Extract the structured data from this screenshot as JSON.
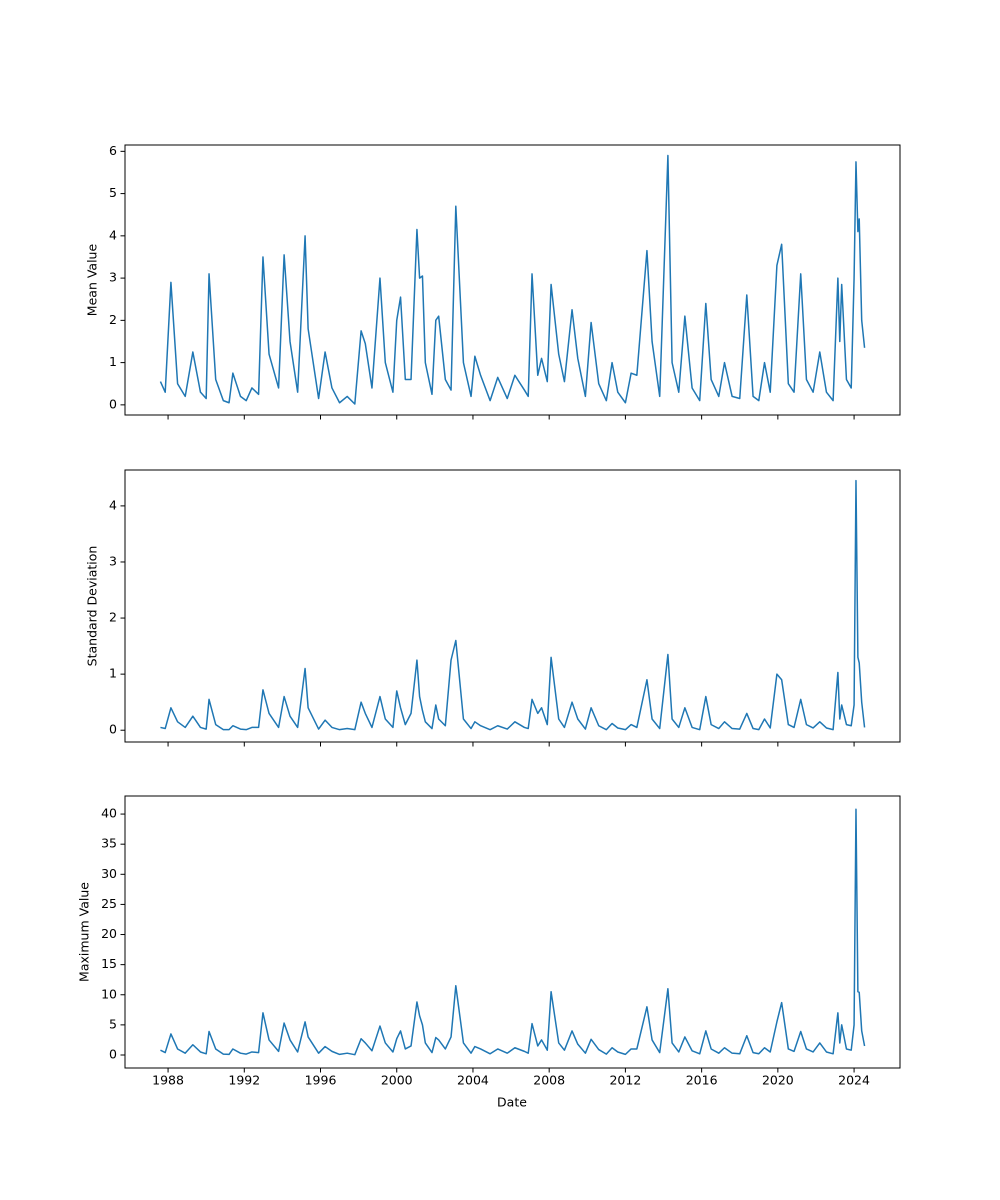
{
  "chart_data": {
    "type": "line",
    "xlabel": "Date",
    "color": "#1f77b4",
    "xlim": [
      1985.74,
      2026.41
    ],
    "xticks": [
      1988,
      1992,
      1996,
      2000,
      2004,
      2008,
      2012,
      2016,
      2020,
      2024
    ],
    "x": [
      1987.6,
      1987.85,
      1988.15,
      1988.5,
      1988.9,
      1989.3,
      1989.7,
      1990.0,
      1990.15,
      1990.5,
      1990.9,
      1991.2,
      1991.4,
      1991.8,
      1992.1,
      1992.4,
      1992.75,
      1992.98,
      1993.3,
      1993.8,
      1994.09,
      1994.4,
      1994.8,
      1995.19,
      1995.35,
      1995.9,
      1996.24,
      1996.6,
      1997.0,
      1997.4,
      1997.8,
      1998.13,
      1998.35,
      1998.7,
      1999.12,
      1999.4,
      1999.8,
      2000.0,
      2000.2,
      2000.45,
      2000.75,
      2001.06,
      2001.2,
      2001.35,
      2001.5,
      2001.85,
      2002.05,
      2002.2,
      2002.55,
      2002.85,
      2003.1,
      2003.5,
      2003.9,
      2004.1,
      2004.4,
      2004.9,
      2005.3,
      2005.8,
      2006.2,
      2006.7,
      2006.9,
      2007.1,
      2007.4,
      2007.6,
      2007.9,
      2008.1,
      2008.5,
      2008.8,
      2009.2,
      2009.5,
      2009.9,
      2010.2,
      2010.6,
      2011.0,
      2011.3,
      2011.6,
      2012.0,
      2012.3,
      2012.6,
      2013.13,
      2013.4,
      2013.8,
      2014.23,
      2014.45,
      2014.8,
      2015.12,
      2015.5,
      2015.9,
      2016.22,
      2016.5,
      2016.9,
      2017.2,
      2017.6,
      2018.0,
      2018.37,
      2018.7,
      2019.0,
      2019.3,
      2019.6,
      2019.95,
      2020.2,
      2020.55,
      2020.85,
      2021.2,
      2021.5,
      2021.85,
      2022.2,
      2022.55,
      2022.9,
      2023.15,
      2023.25,
      2023.35,
      2023.6,
      2023.85,
      2024.0,
      2024.1,
      2024.2,
      2024.27,
      2024.4,
      2024.55
    ],
    "panels": [
      {
        "ylabel": "Mean Value",
        "ylim": [
          -0.24,
          6.15
        ],
        "yticks": [
          0,
          1,
          2,
          3,
          4,
          5,
          6
        ],
        "values": [
          0.55,
          0.3,
          2.9,
          0.5,
          0.2,
          1.25,
          0.3,
          0.15,
          3.1,
          0.6,
          0.1,
          0.05,
          0.75,
          0.2,
          0.1,
          0.4,
          0.25,
          3.5,
          1.2,
          0.4,
          3.55,
          1.5,
          0.3,
          4.0,
          1.8,
          0.15,
          1.25,
          0.4,
          0.05,
          0.2,
          0.02,
          1.75,
          1.45,
          0.4,
          3.0,
          1.0,
          0.3,
          2.0,
          2.55,
          0.6,
          0.6,
          4.15,
          3.0,
          3.05,
          1.0,
          0.25,
          2.0,
          2.1,
          0.6,
          0.35,
          4.7,
          1.0,
          0.2,
          1.15,
          0.7,
          0.1,
          0.65,
          0.15,
          0.7,
          0.35,
          0.2,
          3.1,
          0.7,
          1.1,
          0.55,
          2.85,
          1.2,
          0.55,
          2.25,
          1.1,
          0.2,
          1.95,
          0.5,
          0.1,
          1.0,
          0.3,
          0.05,
          0.75,
          0.7,
          3.65,
          1.5,
          0.2,
          5.9,
          1.0,
          0.3,
          2.1,
          0.4,
          0.1,
          2.4,
          0.6,
          0.2,
          1.0,
          0.2,
          0.15,
          2.6,
          0.2,
          0.1,
          1.0,
          0.3,
          3.3,
          3.8,
          0.5,
          0.3,
          3.1,
          0.6,
          0.3,
          1.25,
          0.3,
          0.1,
          3.0,
          1.5,
          2.85,
          0.6,
          0.4,
          3.0,
          5.75,
          4.1,
          4.4,
          2.0,
          1.35
        ]
      },
      {
        "ylabel": "Standard Deviation",
        "ylim": [
          -0.21,
          4.64
        ],
        "yticks": [
          0,
          1,
          2,
          3,
          4
        ],
        "values": [
          0.05,
          0.03,
          0.4,
          0.15,
          0.05,
          0.25,
          0.05,
          0.02,
          0.55,
          0.1,
          0.01,
          0.01,
          0.08,
          0.02,
          0.01,
          0.05,
          0.05,
          0.72,
          0.3,
          0.05,
          0.6,
          0.25,
          0.05,
          1.1,
          0.4,
          0.02,
          0.18,
          0.05,
          0.01,
          0.03,
          0.01,
          0.5,
          0.3,
          0.05,
          0.6,
          0.2,
          0.05,
          0.7,
          0.4,
          0.1,
          0.3,
          1.25,
          0.6,
          0.35,
          0.15,
          0.03,
          0.45,
          0.2,
          0.08,
          1.25,
          1.6,
          0.2,
          0.03,
          0.15,
          0.08,
          0.01,
          0.08,
          0.02,
          0.15,
          0.05,
          0.03,
          0.55,
          0.3,
          0.4,
          0.1,
          1.3,
          0.2,
          0.05,
          0.5,
          0.2,
          0.02,
          0.4,
          0.08,
          0.01,
          0.12,
          0.04,
          0.01,
          0.1,
          0.05,
          0.9,
          0.2,
          0.03,
          1.35,
          0.2,
          0.05,
          0.4,
          0.05,
          0.01,
          0.6,
          0.1,
          0.03,
          0.15,
          0.03,
          0.02,
          0.3,
          0.03,
          0.01,
          0.2,
          0.04,
          1.0,
          0.9,
          0.1,
          0.05,
          0.55,
          0.1,
          0.04,
          0.15,
          0.04,
          0.01,
          1.03,
          0.2,
          0.45,
          0.1,
          0.08,
          0.45,
          4.45,
          1.3,
          1.2,
          0.5,
          0.05
        ]
      },
      {
        "ylabel": "Maximum Value",
        "ylim": [
          -2.16,
          43.0
        ],
        "yticks": [
          0,
          5,
          10,
          15,
          20,
          25,
          30,
          35,
          40
        ],
        "values": [
          0.8,
          0.4,
          3.5,
          1.0,
          0.3,
          1.7,
          0.5,
          0.2,
          3.9,
          1.0,
          0.15,
          0.1,
          1.0,
          0.3,
          0.15,
          0.5,
          0.4,
          7.0,
          2.5,
          0.6,
          5.3,
          2.5,
          0.5,
          5.5,
          3.0,
          0.3,
          1.4,
          0.6,
          0.1,
          0.3,
          0.05,
          2.7,
          2.0,
          0.7,
          4.8,
          2.0,
          0.5,
          2.7,
          4.0,
          1.0,
          1.5,
          8.8,
          6.5,
          5.0,
          2.0,
          0.4,
          2.9,
          2.5,
          1.0,
          3.0,
          11.5,
          2.0,
          0.3,
          1.4,
          1.0,
          0.2,
          1.0,
          0.3,
          1.2,
          0.6,
          0.3,
          5.2,
          1.5,
          2.5,
          0.8,
          10.5,
          2.0,
          0.8,
          4.0,
          1.8,
          0.3,
          2.6,
          0.9,
          0.15,
          1.2,
          0.5,
          0.1,
          1.0,
          1.0,
          8.0,
          2.5,
          0.4,
          11.0,
          2.0,
          0.5,
          3.0,
          0.7,
          0.2,
          4.0,
          1.0,
          0.3,
          1.2,
          0.3,
          0.2,
          3.2,
          0.4,
          0.2,
          1.2,
          0.5,
          5.5,
          8.7,
          1.0,
          0.6,
          3.9,
          1.0,
          0.5,
          2.0,
          0.5,
          0.2,
          7.0,
          2.0,
          5.0,
          1.0,
          0.8,
          5.0,
          40.8,
          10.5,
          10.4,
          4.0,
          1.5
        ]
      }
    ]
  }
}
